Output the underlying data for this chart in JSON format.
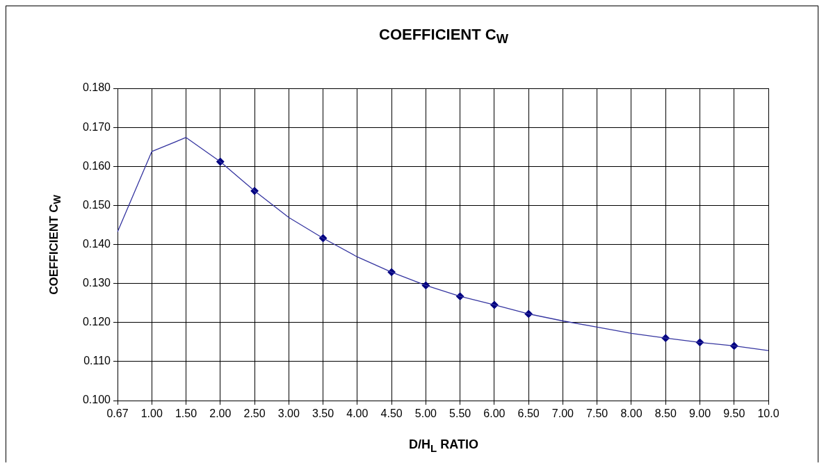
{
  "chart_data": {
    "type": "line",
    "title": "COEFFICIENT C$_{W}$",
    "xlabel": "D/H$_{L}$ RATIO",
    "ylabel": "COEFFICIENT  C$_{W}$",
    "categories": [
      "0.67",
      "1.00",
      "1.50",
      "2.00",
      "2.50",
      "3.00",
      "3.50",
      "4.00",
      "4.50",
      "5.00",
      "5.50",
      "6.00",
      "6.50",
      "7.00",
      "7.50",
      "8.00",
      "8.50",
      "9.00",
      "9.50",
      "10.0"
    ],
    "series": [
      {
        "type": "line",
        "color": "#3535a0",
        "marker": "none",
        "values": [
          0.1432,
          0.1638,
          0.1674,
          0.1612,
          0.1537,
          0.1469,
          0.1416,
          0.1368,
          0.1329,
          0.1295,
          0.1267,
          0.1245,
          0.1222,
          0.1204,
          0.1188,
          0.1172,
          0.116,
          0.1149,
          0.114,
          0.1128
        ]
      },
      {
        "type": "scatter",
        "color": "#000080",
        "marker": "diamond",
        "values": [
          null,
          null,
          null,
          0.1612,
          0.1537,
          null,
          0.1416,
          null,
          0.1329,
          0.1295,
          0.1267,
          0.1245,
          0.1222,
          null,
          null,
          null,
          0.116,
          0.1149,
          0.114,
          null
        ]
      }
    ],
    "ylim": [
      0.1,
      0.18
    ],
    "yticks": [
      {
        "value": 0.1,
        "label": "0.100"
      },
      {
        "value": 0.11,
        "label": "0.110"
      },
      {
        "value": 0.12,
        "label": "0.120"
      },
      {
        "value": 0.13,
        "label": "0.130"
      },
      {
        "value": 0.14,
        "label": "0.140"
      },
      {
        "value": 0.15,
        "label": "0.150"
      },
      {
        "value": 0.16,
        "label": "0.160"
      },
      {
        "value": 0.17,
        "label": "0.170"
      },
      {
        "value": 0.18,
        "label": "0.180"
      }
    ],
    "grid": true
  }
}
